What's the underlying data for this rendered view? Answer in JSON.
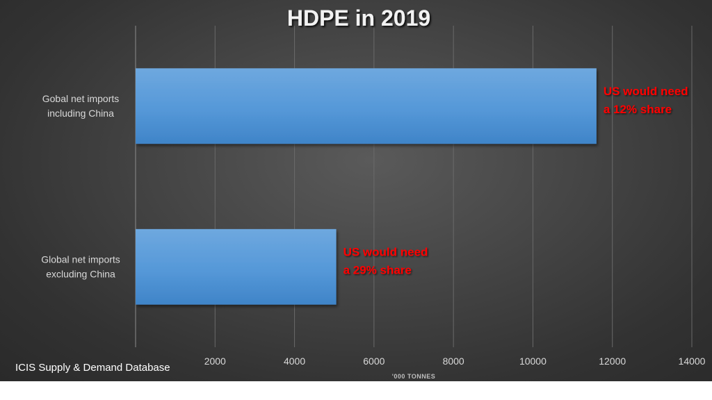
{
  "chart_data": {
    "type": "bar",
    "orientation": "horizontal",
    "title": "HDPE in 2019",
    "xlabel": "'000 TONNES",
    "ylabel": "",
    "categories": [
      "Gobal net imports including China",
      "Global net imports excluding China"
    ],
    "category_lines": [
      [
        "Gobal net imports",
        "including China"
      ],
      [
        "Global net imports",
        "excluding China"
      ]
    ],
    "values": [
      11600,
      5050
    ],
    "xlim": [
      0,
      14000
    ],
    "xticks": [
      2000,
      4000,
      6000,
      8000,
      10000,
      12000,
      14000
    ],
    "grid": true,
    "annotations": [
      [
        "US would need",
        "a 12% share"
      ],
      [
        "US would need",
        "a 29% share"
      ]
    ],
    "bar_color": "#5b9bd5",
    "annotation_color": "#ff0000",
    "source": "ICIS Supply & Demand Database"
  }
}
